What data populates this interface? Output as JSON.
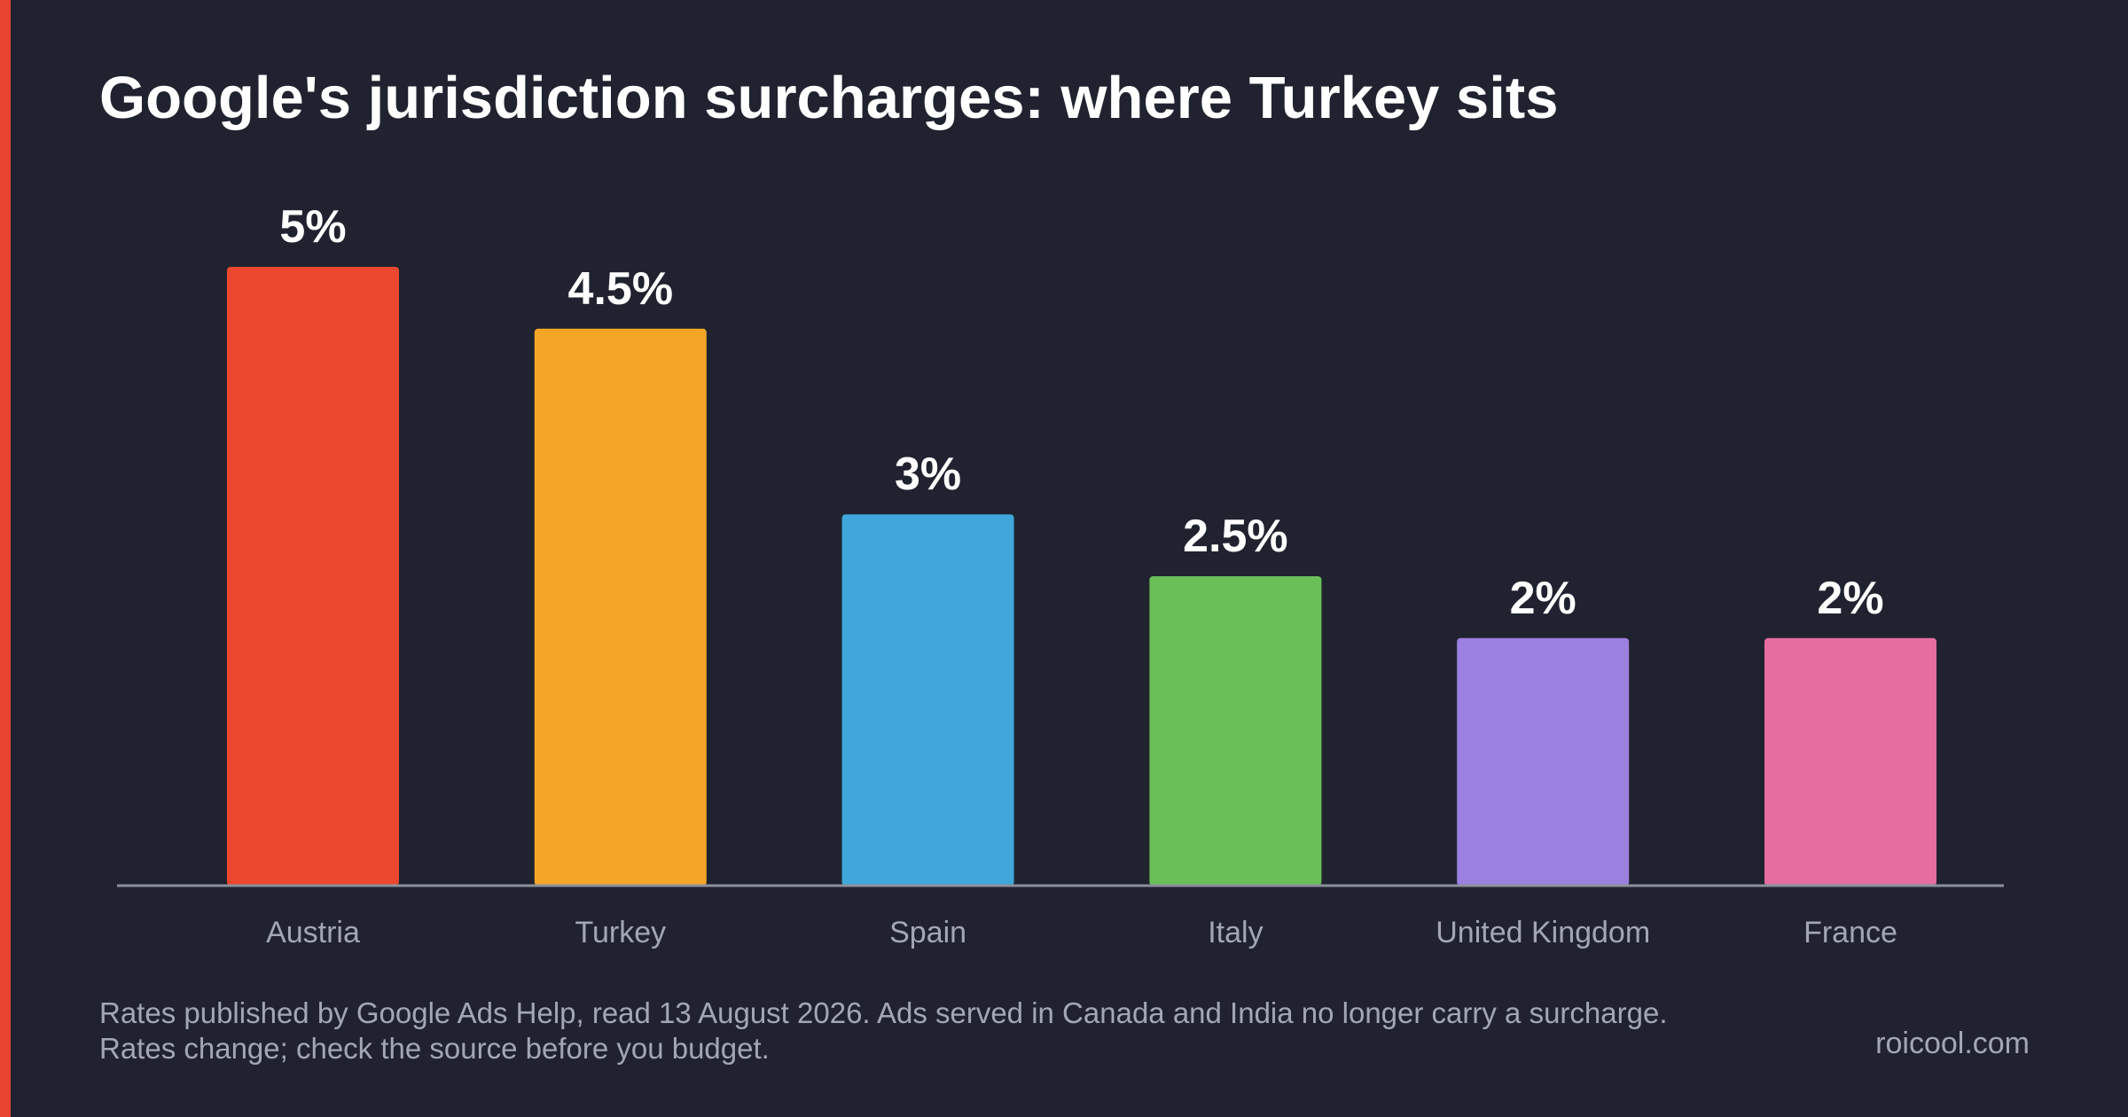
{
  "colors": {
    "background": "#20232f",
    "accent": "#e8432f",
    "axis": "#8c909d",
    "category_label": "#a3a7b5",
    "value_label": "#ffffff"
  },
  "chart_data": {
    "type": "bar",
    "title": "Google's jurisdiction surcharges: where Turkey sits",
    "xlabel": "",
    "ylabel": "",
    "ylim": [
      0,
      5
    ],
    "grid": false,
    "legend": "none",
    "categories": [
      "Austria",
      "Turkey",
      "Spain",
      "Italy",
      "United Kingdom",
      "France"
    ],
    "values": [
      5,
      4.5,
      3,
      2.5,
      2,
      2
    ],
    "value_labels": [
      "5%",
      "4.5%",
      "3%",
      "2.5%",
      "2%",
      "2%"
    ],
    "bar_colors": [
      "#ec472f",
      "#f4a726",
      "#3fa7db",
      "#6abf59",
      "#9c80df",
      "#e66d9f"
    ]
  },
  "footnote": {
    "line1": "Rates published by Google Ads Help, read 13 August 2026. Ads served in Canada and India no longer carry a surcharge.",
    "line2": "Rates change; check the source before you budget."
  },
  "brand": "roicool.com"
}
